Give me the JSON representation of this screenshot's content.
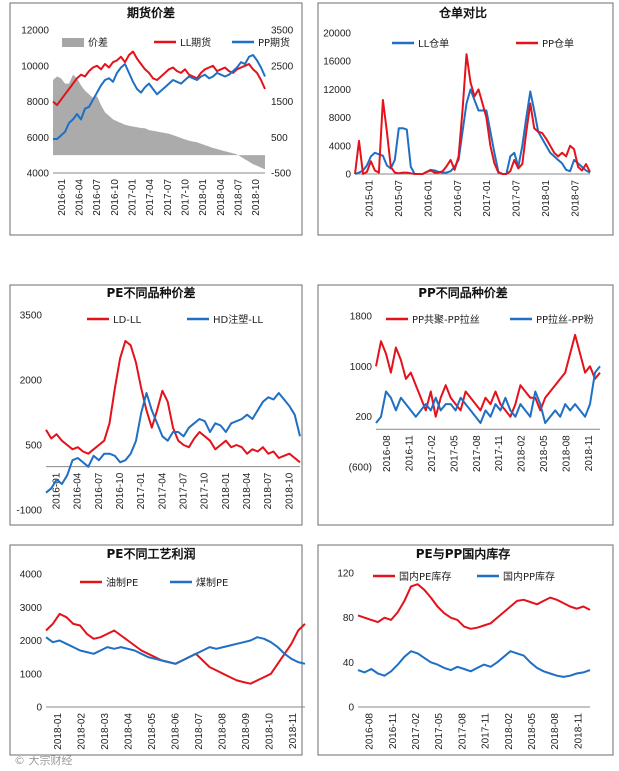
{
  "watermark": "© 大宗财经",
  "colors": {
    "red": "#e3121b",
    "blue": "#1f6fc4",
    "gray": "#a6a6a6",
    "frame": "#6e6e6e"
  },
  "chart_data": [
    {
      "id": "c1",
      "type": "line",
      "title": "期货价差",
      "y_left": {
        "ticks": [
          "4000",
          "6000",
          "8000",
          "10000",
          "12000"
        ],
        "min": 4000,
        "max": 12000
      },
      "y_right": {
        "ticks": [
          "-500",
          "500",
          "1500",
          "2500",
          "3500"
        ],
        "min": -500,
        "max": 3500
      },
      "x_ticks": [
        "2016-01",
        "2016-04",
        "2016-07",
        "2016-10",
        "2017-01",
        "2017-04",
        "2017-07",
        "2017-10",
        "2018-01",
        "2018-04",
        "2018-07",
        "2018-10"
      ],
      "series": [
        {
          "name": "价差",
          "kind": "area",
          "axis": "right",
          "color": "#a6a6a6",
          "values": [
            2100,
            2200,
            2150,
            2000,
            2000,
            2250,
            2150,
            1950,
            1800,
            1700,
            1600,
            1650,
            1400,
            1200,
            1100,
            1000,
            950,
            900,
            850,
            820,
            800,
            780,
            760,
            750,
            700,
            680,
            660,
            640,
            620,
            600,
            560,
            520,
            480,
            440,
            400,
            380,
            360,
            320,
            280,
            240,
            200,
            170,
            140,
            110,
            80,
            50,
            20,
            -50,
            -120,
            -180,
            -250,
            -300,
            -350,
            -400
          ]
        },
        {
          "name": "LL期货",
          "kind": "line",
          "axis": "left",
          "color": "#e3121b",
          "values": [
            8000,
            7800,
            8100,
            8400,
            8700,
            9000,
            9300,
            9500,
            9400,
            9700,
            9900,
            10000,
            9800,
            10100,
            9900,
            10200,
            10300,
            10500,
            10200,
            10600,
            10800,
            10400,
            10100,
            9800,
            9600,
            9300,
            9200,
            9400,
            9600,
            9800,
            9900,
            9700,
            9600,
            9800,
            9500,
            9400,
            9300,
            9600,
            9800,
            9900,
            10000,
            9700,
            9800,
            9900,
            9700,
            9600,
            9800,
            9900,
            10000,
            10100,
            9800,
            9600,
            9200,
            8700
          ]
        },
        {
          "name": "PP期货",
          "kind": "line",
          "axis": "left",
          "color": "#1f6fc4",
          "values": [
            5900,
            5900,
            6100,
            6300,
            6800,
            7000,
            7300,
            7000,
            7600,
            7700,
            8100,
            8500,
            8900,
            9200,
            9300,
            9100,
            9600,
            9900,
            10100,
            9600,
            9100,
            8700,
            8500,
            8800,
            9000,
            8700,
            8400,
            8600,
            8800,
            9000,
            9200,
            9100,
            9000,
            9200,
            9400,
            9300,
            9200,
            9400,
            9500,
            9300,
            9400,
            9600,
            9500,
            9400,
            9500,
            9700,
            9900,
            10200,
            10100,
            10500,
            10600,
            10300,
            9900,
            9400
          ]
        }
      ]
    },
    {
      "id": "c2",
      "type": "line",
      "title": "仓单对比",
      "y_left": {
        "ticks": [
          "0",
          "4000",
          "8000",
          "12000",
          "16000",
          "20000"
        ],
        "min": 0,
        "max": 20000
      },
      "x_ticks": [
        "2015-01",
        "2015-07",
        "2016-01",
        "2016-07",
        "2017-01",
        "2017-07",
        "2018-01",
        "2018-07"
      ],
      "series": [
        {
          "name": "LL仓单",
          "kind": "line",
          "axis": "left",
          "color": "#1f6fc4",
          "values": [
            0,
            200,
            500,
            1200,
            2500,
            3000,
            2800,
            2600,
            1200,
            800,
            2000,
            6500,
            6500,
            6300,
            1000,
            0,
            0,
            0,
            300,
            600,
            500,
            300,
            200,
            200,
            400,
            1000,
            2000,
            6000,
            10000,
            12000,
            10500,
            9000,
            9000,
            9000,
            6000,
            3000,
            300,
            0,
            0,
            2500,
            3000,
            1000,
            4000,
            8000,
            11700,
            9000,
            6000,
            5000,
            4000,
            3000,
            2500,
            2000,
            1500,
            600,
            400,
            2000,
            1500,
            1000,
            500,
            200
          ]
        },
        {
          "name": "PP仓单",
          "kind": "line",
          "axis": "left",
          "color": "#e3121b",
          "values": [
            0,
            4700,
            0,
            300,
            1800,
            500,
            200,
            10500,
            6000,
            1000,
            200,
            100,
            200,
            200,
            100,
            0,
            0,
            0,
            300,
            500,
            200,
            200,
            400,
            1100,
            2000,
            600,
            2500,
            9000,
            17000,
            13000,
            11000,
            12000,
            10000,
            8000,
            4000,
            1500,
            200,
            0,
            0,
            400,
            2000,
            800,
            1400,
            6000,
            10000,
            6500,
            6000,
            5800,
            5000,
            4000,
            3000,
            2500,
            3000,
            2500,
            4000,
            3500,
            1000,
            500,
            1400,
            300
          ]
        }
      ]
    },
    {
      "id": "c3",
      "type": "line",
      "title": "PE不同品种价差",
      "y_left": {
        "ticks": [
          "-1000",
          "500",
          "2000",
          "3500"
        ],
        "min": -1000,
        "max": 3500
      },
      "x_ticks": [
        "2016-01",
        "2016-04",
        "2016-07",
        "2016-10",
        "2017-01",
        "2017-04",
        "2017-07",
        "2017-10",
        "2018-01",
        "2018-04",
        "2018-07",
        "2018-10"
      ],
      "series": [
        {
          "name": "LD-LL",
          "kind": "line",
          "axis": "left",
          "color": "#e3121b",
          "values": [
            850,
            650,
            750,
            600,
            500,
            400,
            450,
            350,
            300,
            400,
            500,
            600,
            1000,
            1800,
            2500,
            2900,
            2800,
            2400,
            1800,
            1300,
            900,
            1300,
            1750,
            1500,
            900,
            600,
            500,
            450,
            650,
            800,
            700,
            600,
            400,
            500,
            600,
            450,
            500,
            450,
            300,
            400,
            350,
            450,
            300,
            350,
            200,
            250,
            300,
            200,
            100
          ]
        },
        {
          "name": "HD注塑-LL",
          "kind": "line",
          "axis": "left",
          "color": "#1f6fc4",
          "values": [
            -600,
            -500,
            -300,
            -400,
            -200,
            150,
            200,
            100,
            0,
            250,
            150,
            300,
            300,
            250,
            100,
            150,
            300,
            600,
            1250,
            1700,
            1300,
            1000,
            700,
            600,
            800,
            800,
            700,
            900,
            1000,
            1100,
            1050,
            800,
            1000,
            950,
            800,
            1000,
            1050,
            1100,
            1200,
            1100,
            1300,
            1500,
            1600,
            1550,
            1700,
            1550,
            1400,
            1200,
            700
          ]
        }
      ]
    },
    {
      "id": "c4",
      "type": "line",
      "title": "PP不同品种价差",
      "y_left": {
        "ticks": [
          "(600)",
          "200",
          "1000",
          "1800"
        ],
        "min": -600,
        "max": 1800
      },
      "x_ticks": [
        "2016-08",
        "2016-11",
        "2017-02",
        "2017-05",
        "2017-08",
        "2017-11",
        "2018-02",
        "2018-05",
        "2018-08",
        "2018-11"
      ],
      "series": [
        {
          "name": "PP共聚-PP拉丝",
          "kind": "line",
          "axis": "left",
          "color": "#e3121b",
          "values": [
            1000,
            1400,
            1200,
            900,
            1300,
            1100,
            800,
            900,
            700,
            500,
            300,
            600,
            200,
            500,
            700,
            500,
            400,
            300,
            600,
            500,
            400,
            300,
            500,
            400,
            600,
            400,
            300,
            200,
            400,
            700,
            600,
            500,
            500,
            300,
            500,
            600,
            700,
            800,
            900,
            1200,
            1500,
            1200,
            900,
            1000,
            800,
            900
          ]
        },
        {
          "name": "PP拉丝-PP粉",
          "kind": "line",
          "axis": "left",
          "color": "#1f6fc4",
          "values": [
            100,
            200,
            600,
            500,
            300,
            500,
            400,
            300,
            200,
            300,
            400,
            300,
            500,
            300,
            400,
            400,
            300,
            500,
            400,
            300,
            200,
            100,
            300,
            200,
            400,
            300,
            500,
            300,
            200,
            400,
            300,
            200,
            600,
            400,
            100,
            200,
            300,
            200,
            400,
            300,
            400,
            300,
            200,
            400,
            900,
            1000
          ]
        }
      ]
    },
    {
      "id": "c5",
      "type": "line",
      "title": "PE不同工艺利润",
      "y_left": {
        "ticks": [
          "0",
          "1000",
          "2000",
          "3000",
          "4000"
        ],
        "min": 0,
        "max": 4000
      },
      "x_ticks": [
        "2018-01",
        "2018-02",
        "2018-03",
        "2018-04",
        "2018-05",
        "2018-06",
        "2018-07",
        "2018-08",
        "2018-09",
        "2018-10",
        "2018-11"
      ],
      "series": [
        {
          "name": "油制PE",
          "kind": "line",
          "axis": "left",
          "color": "#e3121b",
          "values": [
            2300,
            2500,
            2800,
            2700,
            2500,
            2450,
            2200,
            2050,
            2100,
            2200,
            2300,
            2150,
            2000,
            1850,
            1700,
            1600,
            1500,
            1400,
            1350,
            1300,
            1400,
            1500,
            1600,
            1400,
            1200,
            1100,
            1000,
            900,
            800,
            750,
            700,
            800,
            900,
            1000,
            1300,
            1600,
            1900,
            2300,
            2500
          ]
        },
        {
          "name": "煤制PE",
          "kind": "line",
          "axis": "left",
          "color": "#1f6fc4",
          "values": [
            2100,
            1950,
            2000,
            1900,
            1800,
            1700,
            1650,
            1600,
            1700,
            1800,
            1750,
            1800,
            1750,
            1700,
            1600,
            1500,
            1450,
            1400,
            1350,
            1300,
            1400,
            1500,
            1600,
            1700,
            1800,
            1750,
            1800,
            1850,
            1900,
            1950,
            2000,
            2100,
            2050,
            1950,
            1800,
            1600,
            1450,
            1350,
            1300
          ]
        }
      ]
    },
    {
      "id": "c6",
      "type": "line",
      "title": "PE与PP国内库存",
      "y_left": {
        "ticks": [
          "0",
          "40",
          "80",
          "120"
        ],
        "min": 0,
        "max": 120
      },
      "x_ticks": [
        "2016-08",
        "2016-11",
        "2017-02",
        "2017-05",
        "2017-08",
        "2017-11",
        "2018-02",
        "2018-05",
        "2018-08",
        "2018-11"
      ],
      "series": [
        {
          "name": "国内PE库存",
          "kind": "line",
          "axis": "left",
          "color": "#e3121b",
          "values": [
            82,
            80,
            78,
            76,
            80,
            78,
            85,
            95,
            108,
            110,
            105,
            98,
            90,
            84,
            80,
            78,
            72,
            70,
            71,
            73,
            75,
            80,
            85,
            90,
            95,
            96,
            94,
            92,
            95,
            98,
            96,
            93,
            90,
            88,
            90,
            87
          ]
        },
        {
          "name": "国内PP库存",
          "kind": "line",
          "axis": "left",
          "color": "#1f6fc4",
          "values": [
            33,
            31,
            34,
            30,
            28,
            32,
            38,
            45,
            50,
            48,
            44,
            40,
            38,
            35,
            33,
            36,
            34,
            32,
            35,
            38,
            36,
            40,
            45,
            50,
            48,
            46,
            40,
            35,
            32,
            30,
            28,
            27,
            28,
            30,
            31,
            33
          ]
        }
      ]
    }
  ]
}
